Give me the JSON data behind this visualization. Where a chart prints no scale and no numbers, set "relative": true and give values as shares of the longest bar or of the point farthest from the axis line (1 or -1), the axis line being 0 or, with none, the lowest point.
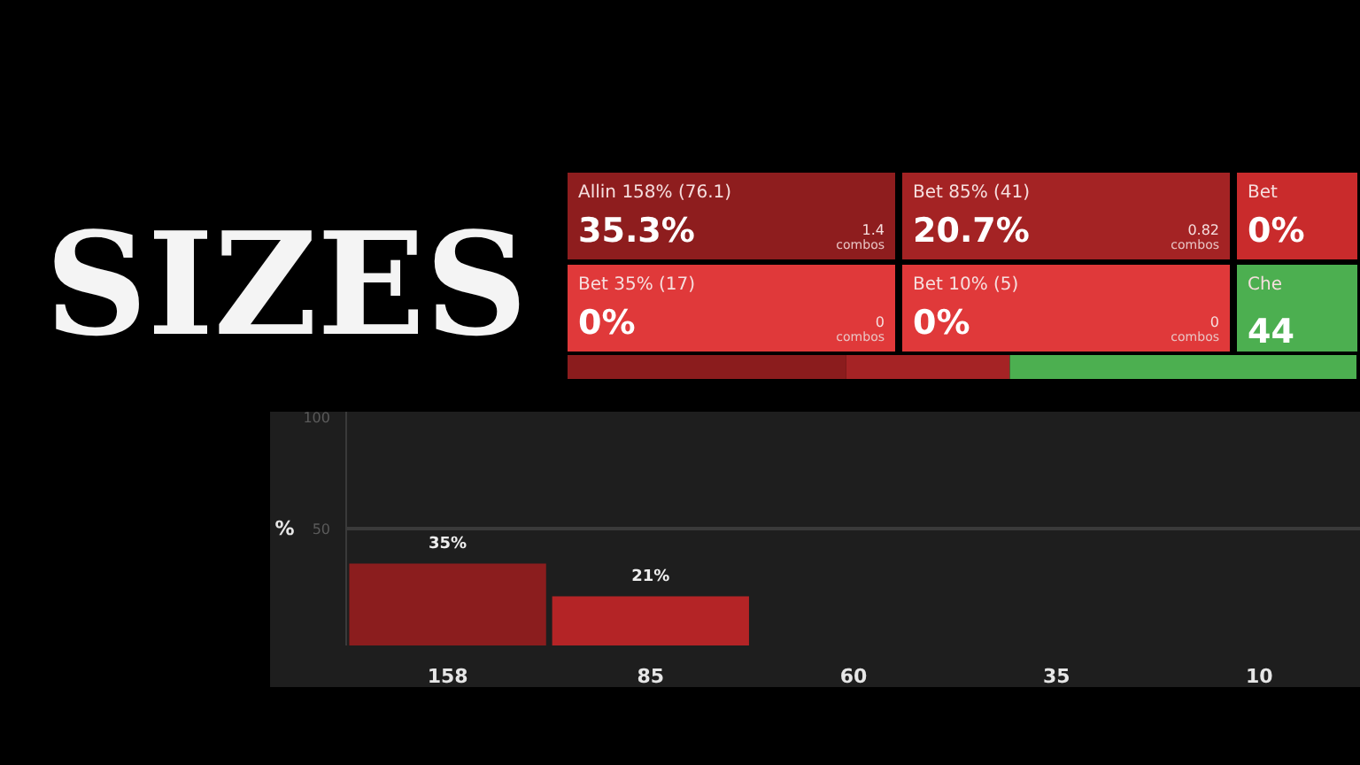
{
  "chart_data": [
    {
      "type": "other",
      "title": "SIZES",
      "annotations": [
        "Allin 158% (76.1)",
        "35.3%",
        "1.4",
        "combos",
        "Bet 85% (41)",
        "20.7%",
        "0.82",
        "combos",
        "Bet",
        "0%",
        "Bet 35% (17)",
        "0%",
        "0",
        "combos",
        "Bet 10% (5)",
        "0%",
        "0",
        "combos",
        "Che",
        "44"
      ]
    },
    {
      "type": "bar",
      "orientation": "horizontal",
      "stacked": true,
      "relative": true,
      "categories": [
        null
      ],
      "series": [
        {
          "color": "#8b1c1d",
          "values": [
            0.353
          ]
        },
        {
          "color": "#a52325",
          "values": [
            0.207
          ]
        },
        {
          "color": "#4caf50",
          "values": [
            0.44
          ]
        }
      ]
    },
    {
      "type": "bar",
      "categories": [
        "158",
        "85",
        "60",
        "35",
        "10"
      ],
      "values": [
        35,
        21,
        0,
        0,
        0
      ],
      "colors": [
        "#8b1d1e",
        "#b42426",
        "#b42426",
        "#b42426",
        "#b42426"
      ],
      "value_labels": [
        "35%",
        "21%",
        null,
        null,
        null
      ],
      "ylabel": "%",
      "ylim": [
        0,
        100
      ],
      "yticks": [
        {
          "value": 0,
          "label": null
        },
        50,
        100
      ],
      "grid": "y"
    }
  ]
}
